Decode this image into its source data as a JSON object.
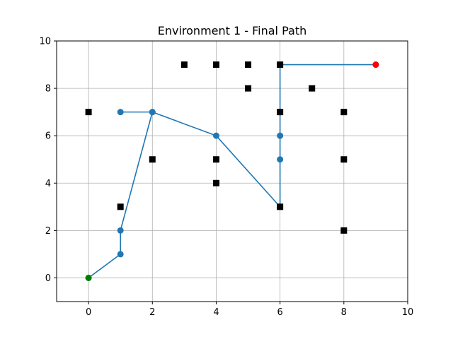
{
  "chart_data": {
    "type": "scatter",
    "title": "Environment 1 - Final Path",
    "xlabel": "",
    "ylabel": "",
    "xlim": [
      -1,
      10
    ],
    "ylim": [
      -1,
      10
    ],
    "x_ticks": [
      0,
      2,
      4,
      6,
      8,
      10
    ],
    "y_ticks": [
      0,
      2,
      4,
      6,
      8,
      10
    ],
    "grid": true,
    "legend": "none",
    "colors": {
      "path": "#1f77b4",
      "start": "#008000",
      "goal": "#ff0000",
      "obstacle": "#000000",
      "grid": "#b0b0b0"
    },
    "obstacles": [
      [
        3,
        9
      ],
      [
        4,
        9
      ],
      [
        5,
        9
      ],
      [
        6,
        9
      ],
      [
        5,
        8
      ],
      [
        7,
        8
      ],
      [
        0,
        7
      ],
      [
        6,
        7
      ],
      [
        8,
        7
      ],
      [
        2,
        5
      ],
      [
        4,
        5
      ],
      [
        8,
        5
      ],
      [
        4,
        4
      ],
      [
        1,
        3
      ],
      [
        6,
        3
      ],
      [
        8,
        2
      ]
    ],
    "path": [
      [
        0,
        0
      ],
      [
        1,
        1
      ],
      [
        1,
        2
      ],
      [
        2,
        7
      ],
      [
        1,
        7
      ],
      [
        2,
        7
      ],
      [
        4,
        6
      ],
      [
        6,
        3
      ],
      [
        6,
        5
      ],
      [
        6,
        6
      ],
      [
        6,
        7
      ],
      [
        6,
        9
      ],
      [
        9,
        9
      ]
    ],
    "start": [
      0,
      0
    ],
    "goal": [
      9,
      9
    ]
  }
}
